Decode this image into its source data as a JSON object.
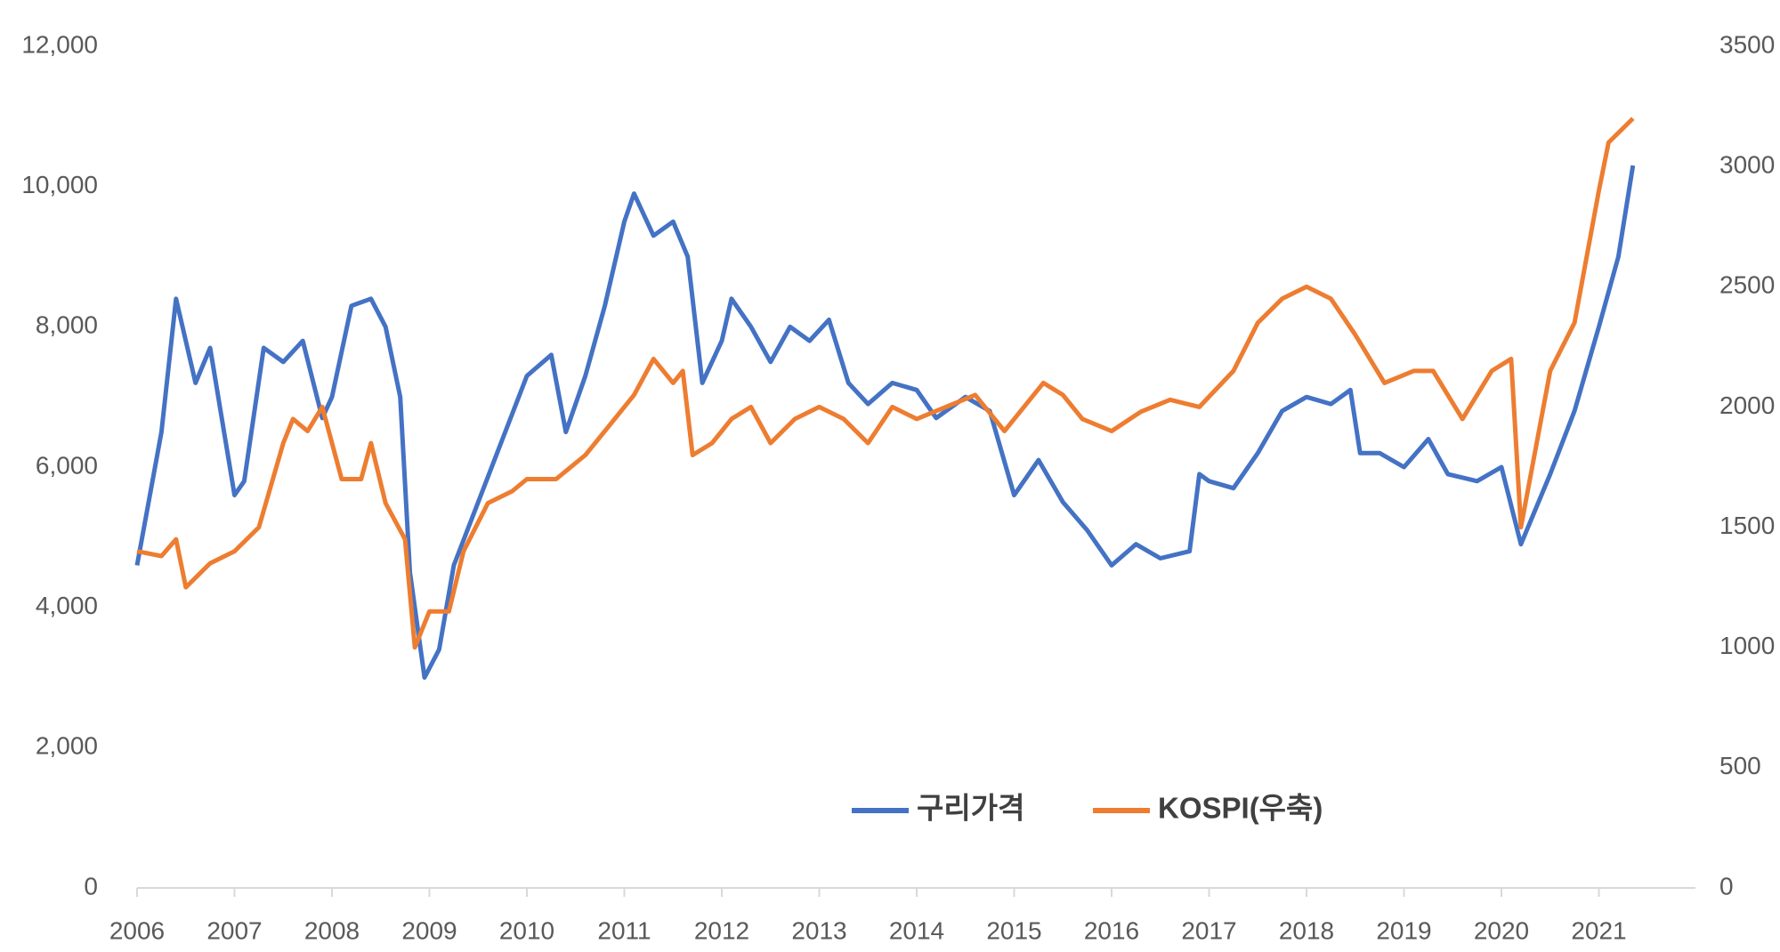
{
  "chart_data": {
    "type": "line",
    "xlim": [
      2006,
      2022
    ],
    "xticks": [
      2006,
      2007,
      2008,
      2009,
      2010,
      2011,
      2012,
      2013,
      2014,
      2015,
      2016,
      2017,
      2018,
      2019,
      2020,
      2021
    ],
    "ylim": [
      0,
      12000
    ],
    "yticks": [
      0,
      {
        "value": 2000,
        "label": "2,000"
      },
      {
        "value": 4000,
        "label": "4,000"
      },
      {
        "value": 6000,
        "label": "6,000"
      },
      {
        "value": 8000,
        "label": "8,000"
      },
      {
        "value": 10000,
        "label": "10,000"
      },
      {
        "value": 12000,
        "label": "12,000"
      }
    ],
    "y2lim": [
      0,
      3500
    ],
    "y2ticks": [
      0,
      500,
      1000,
      1500,
      2000,
      2500,
      3000,
      3500
    ],
    "legend": "bottom",
    "series": [
      {
        "name": "구리가격",
        "color": "#4472c4",
        "axis": "y",
        "x": [
          2006.0,
          2006.25,
          2006.4,
          2006.6,
          2006.75,
          2007.0,
          2007.1,
          2007.3,
          2007.5,
          2007.7,
          2007.9,
          2008.0,
          2008.2,
          2008.4,
          2008.55,
          2008.7,
          2008.8,
          2008.95,
          2009.1,
          2009.25,
          2009.5,
          2009.75,
          2010.0,
          2010.25,
          2010.4,
          2010.6,
          2010.8,
          2011.0,
          2011.1,
          2011.3,
          2011.5,
          2011.65,
          2011.8,
          2012.0,
          2012.1,
          2012.3,
          2012.5,
          2012.7,
          2012.9,
          2013.1,
          2013.3,
          2013.5,
          2013.75,
          2014.0,
          2014.2,
          2014.5,
          2014.75,
          2015.0,
          2015.25,
          2015.5,
          2015.75,
          2016.0,
          2016.25,
          2016.5,
          2016.8,
          2016.9,
          2017.0,
          2017.25,
          2017.5,
          2017.75,
          2018.0,
          2018.25,
          2018.45,
          2018.55,
          2018.75,
          2019.0,
          2019.25,
          2019.45,
          2019.75,
          2020.0,
          2020.2,
          2020.5,
          2020.75,
          2021.0,
          2021.2,
          2021.35
        ],
        "values": [
          4600,
          6500,
          8400,
          7200,
          7700,
          5600,
          5800,
          7700,
          7500,
          7800,
          6700,
          7000,
          8300,
          8400,
          8000,
          7000,
          4500,
          3000,
          3400,
          4600,
          5500,
          6400,
          7300,
          7600,
          6500,
          7300,
          8300,
          9500,
          9900,
          9300,
          9500,
          9000,
          7200,
          7800,
          8400,
          8000,
          7500,
          8000,
          7800,
          8100,
          7200,
          6900,
          7200,
          7100,
          6700,
          7000,
          6800,
          5600,
          6100,
          5500,
          5100,
          4600,
          4900,
          4700,
          4800,
          5900,
          5800,
          5700,
          6200,
          6800,
          7000,
          6900,
          7100,
          6200,
          6200,
          6000,
          6400,
          5900,
          5800,
          6000,
          4900,
          5900,
          6800,
          8000,
          9000,
          10300
        ]
      },
      {
        "name": "KOSPI(우축)",
        "color": "#ed7d31",
        "axis": "y2",
        "x": [
          2006.0,
          2006.25,
          2006.4,
          2006.5,
          2006.75,
          2007.0,
          2007.25,
          2007.5,
          2007.6,
          2007.75,
          2007.9,
          2008.1,
          2008.3,
          2008.4,
          2008.55,
          2008.75,
          2008.85,
          2009.0,
          2009.2,
          2009.35,
          2009.6,
          2009.85,
          2010.0,
          2010.3,
          2010.6,
          2010.9,
          2011.1,
          2011.3,
          2011.5,
          2011.6,
          2011.7,
          2011.9,
          2012.1,
          2012.3,
          2012.5,
          2012.75,
          2013.0,
          2013.25,
          2013.5,
          2013.75,
          2014.0,
          2014.3,
          2014.6,
          2014.9,
          2015.3,
          2015.5,
          2015.7,
          2016.0,
          2016.3,
          2016.6,
          2016.9,
          2017.25,
          2017.5,
          2017.75,
          2018.0,
          2018.25,
          2018.5,
          2018.8,
          2019.1,
          2019.3,
          2019.6,
          2019.9,
          2020.1,
          2020.2,
          2020.5,
          2020.75,
          2021.0,
          2021.1,
          2021.35
        ],
        "values": [
          1400,
          1380,
          1450,
          1250,
          1350,
          1400,
          1500,
          1850,
          1950,
          1900,
          2000,
          1700,
          1700,
          1850,
          1600,
          1450,
          1000,
          1150,
          1150,
          1400,
          1600,
          1650,
          1700,
          1700,
          1800,
          1950,
          2050,
          2200,
          2100,
          2150,
          1800,
          1850,
          1950,
          2000,
          1850,
          1950,
          2000,
          1950,
          1850,
          2000,
          1950,
          2000,
          2050,
          1900,
          2100,
          2050,
          1950,
          1900,
          1980,
          2030,
          2000,
          2150,
          2350,
          2450,
          2500,
          2450,
          2300,
          2100,
          2150,
          2150,
          1950,
          2150,
          2200,
          1500,
          2150,
          2350,
          2900,
          3100,
          3200
        ]
      }
    ]
  }
}
